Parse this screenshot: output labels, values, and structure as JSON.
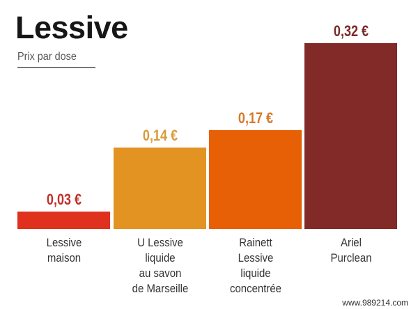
{
  "chart_data": {
    "type": "bar",
    "title": "Lessive",
    "subtitle": "Prix par dose",
    "xlabel": "",
    "ylabel": "",
    "ylim": [
      0,
      0.35
    ],
    "grid": false,
    "legend": null,
    "categories": [
      "Lessive maison",
      "U Lessive liquide au savon de Marseille",
      "Rainett Lessive liquide concentrée",
      "Ariel Purclean"
    ],
    "values": [
      0.03,
      0.14,
      0.17,
      0.32
    ],
    "value_labels": [
      "0,03 €",
      "0,14 €",
      "0,17 €",
      "0,32 €"
    ],
    "unit": "€"
  },
  "bars": [
    {
      "label_lines": [
        "Lessive",
        "maison"
      ],
      "value_label": "0,03 €",
      "color": "#e0301e",
      "label_color": "#c0302a"
    },
    {
      "label_lines": [
        "U Lessive",
        "liquide",
        "au savon",
        "de Marseille"
      ],
      "value_label": "0,14 €",
      "color": "#e29321",
      "label_color": "#d99a3a"
    },
    {
      "label_lines": [
        "Rainett",
        "Lessive",
        "liquide",
        "concentrée"
      ],
      "value_label": "0,17 €",
      "color": "#e86006",
      "label_color": "#d57a2b"
    },
    {
      "label_lines": [
        "Ariel",
        "Purclean"
      ],
      "value_label": "0,32 €",
      "color": "#812a27",
      "label_color": "#7a2a28"
    }
  ],
  "watermark": "www.989214.com"
}
